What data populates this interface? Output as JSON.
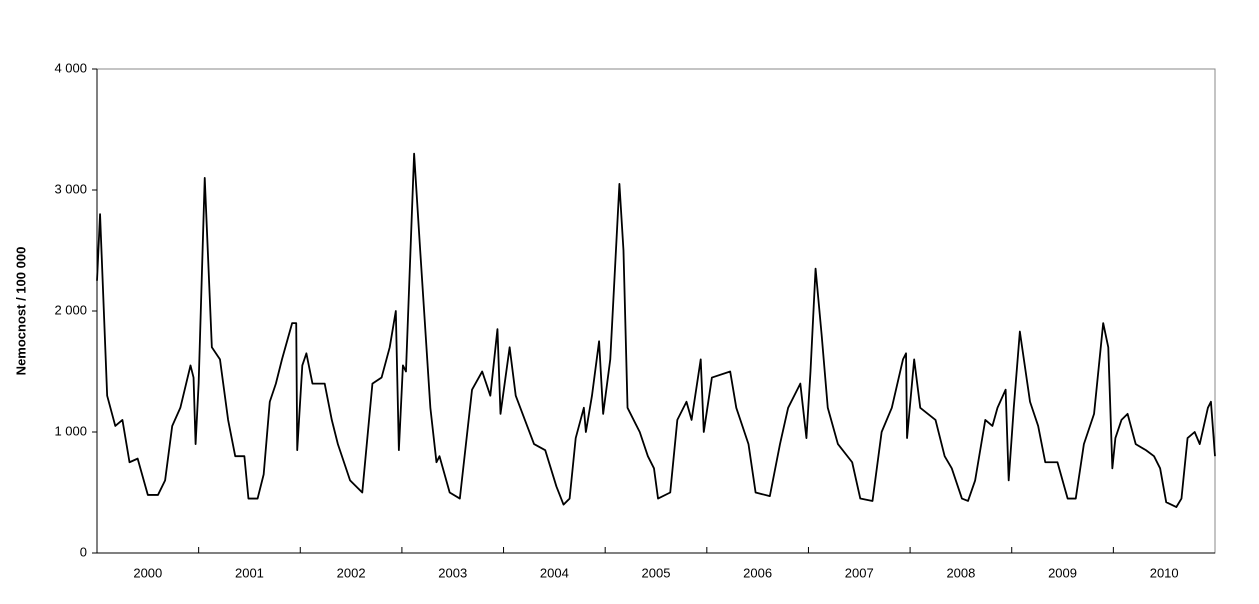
{
  "chart_data": {
    "type": "line",
    "y_label": "Nemocnost / 100 000",
    "categories": [
      "2000",
      "2001",
      "2002",
      "2003",
      "2004",
      "2005",
      "2006",
      "2007",
      "2008",
      "2009",
      "2010"
    ],
    "xlim": [
      2000,
      2011
    ],
    "ylim": [
      0,
      4000
    ],
    "yticks": [
      0,
      {
        "value": 1000,
        "label": "1 000"
      },
      {
        "value": 2000,
        "label": "2 000"
      },
      {
        "value": 3000,
        "label": "3 000"
      },
      {
        "value": 4000,
        "label": "4 000"
      }
    ],
    "series": [
      {
        "color": "#000000",
        "x": [
          2000.0,
          2000.03,
          2000.1,
          2000.18,
          2000.25,
          2000.32,
          2000.4,
          2000.5,
          2000.6,
          2000.67,
          2000.74,
          2000.82,
          2000.92,
          2000.95,
          2000.97,
          2001.0,
          2001.06,
          2001.13,
          2001.21,
          2001.29,
          2001.36,
          2001.45,
          2001.49,
          2001.58,
          2001.64,
          2001.7,
          2001.76,
          2001.82,
          2001.92,
          2001.96,
          2001.97,
          2002.02,
          2002.06,
          2002.12,
          2002.24,
          2002.31,
          2002.37,
          2002.49,
          2002.61,
          2002.71,
          2002.8,
          2002.88,
          2002.94,
          2002.97,
          2003.01,
          2003.04,
          2003.12,
          2003.18,
          2003.28,
          2003.34,
          2003.37,
          2003.47,
          2003.57,
          2003.69,
          2003.79,
          2003.87,
          2003.94,
          2003.97,
          2004.06,
          2004.12,
          2004.21,
          2004.3,
          2004.41,
          2004.52,
          2004.59,
          2004.65,
          2004.71,
          2004.79,
          2004.81,
          2004.87,
          2004.94,
          2004.98,
          2005.05,
          2005.14,
          2005.18,
          2005.22,
          2005.34,
          2005.42,
          2005.48,
          2005.52,
          2005.64,
          2005.71,
          2005.8,
          2005.85,
          2005.94,
          2005.97,
          2006.05,
          2006.23,
          2006.29,
          2006.41,
          2006.48,
          2006.62,
          2006.72,
          2006.8,
          2006.92,
          2006.98,
          2007.02,
          2007.07,
          2007.13,
          2007.19,
          2007.29,
          2007.43,
          2007.51,
          2007.63,
          2007.72,
          2007.82,
          2007.93,
          2007.96,
          2007.97,
          2008.04,
          2008.1,
          2008.25,
          2008.34,
          2008.41,
          2008.51,
          2008.57,
          2008.64,
          2008.74,
          2008.81,
          2008.86,
          2008.94,
          2008.97,
          2009.02,
          2009.08,
          2009.18,
          2009.26,
          2009.33,
          2009.45,
          2009.55,
          2009.63,
          2009.71,
          2009.81,
          2009.9,
          2009.95,
          2009.99,
          2010.02,
          2010.08,
          2010.14,
          2010.22,
          2010.32,
          2010.4,
          2010.46,
          2010.52,
          2010.62,
          2010.67,
          2010.73,
          2010.8,
          2010.85,
          2010.89,
          2010.93,
          2010.96,
          2011.0
        ],
        "values": [
          2250,
          2800,
          1300,
          1050,
          1100,
          750,
          780,
          480,
          480,
          600,
          1050,
          1200,
          1550,
          1450,
          900,
          1400,
          3100,
          1700,
          1600,
          1100,
          800,
          800,
          450,
          450,
          650,
          1250,
          1400,
          1600,
          1900,
          1900,
          850,
          1550,
          1650,
          1400,
          1400,
          1100,
          900,
          600,
          500,
          1400,
          1450,
          1700,
          2000,
          850,
          1550,
          1500,
          3300,
          2500,
          1200,
          750,
          800,
          500,
          450,
          1350,
          1500,
          1300,
          1850,
          1150,
          1700,
          1300,
          1100,
          900,
          850,
          550,
          400,
          450,
          950,
          1200,
          1000,
          1300,
          1750,
          1150,
          1600,
          3050,
          2500,
          1200,
          1000,
          800,
          700,
          450,
          500,
          1100,
          1250,
          1100,
          1600,
          1000,
          1450,
          1500,
          1200,
          900,
          500,
          470,
          900,
          1200,
          1400,
          950,
          1500,
          2350,
          1800,
          1200,
          900,
          750,
          450,
          430,
          1000,
          1200,
          1600,
          1650,
          950,
          1600,
          1200,
          1100,
          800,
          700,
          450,
          430,
          600,
          1100,
          1050,
          1200,
          1350,
          600,
          1200,
          1830,
          1250,
          1050,
          750,
          750,
          450,
          450,
          900,
          1150,
          1900,
          1700,
          700,
          950,
          1100,
          1150,
          900,
          850,
          800,
          700,
          420,
          380,
          450,
          950,
          1000,
          900,
          1050,
          1200,
          1250,
          800
        ]
      }
    ]
  }
}
